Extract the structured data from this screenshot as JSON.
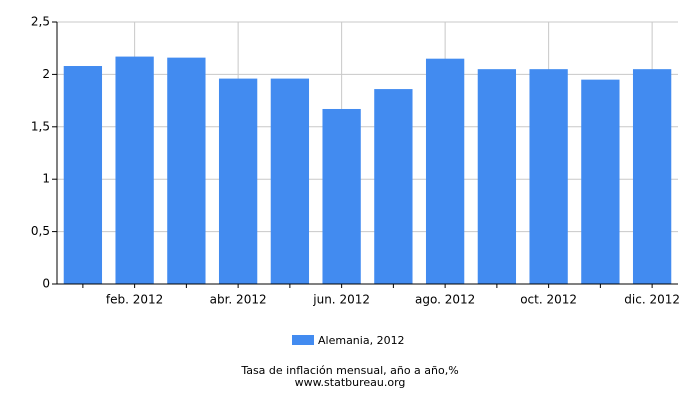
{
  "chart_data": {
    "type": "bar",
    "categories": [
      null,
      "feb. 2012",
      null,
      "abr. 2012",
      null,
      "jun. 2012",
      null,
      "ago. 2012",
      null,
      "oct. 2012",
      null,
      "dic. 2012"
    ],
    "series": [
      {
        "name": "Alemania, 2012",
        "color": "#428bf0",
        "values": [
          2.08,
          2.17,
          2.16,
          1.96,
          1.96,
          1.67,
          1.86,
          2.15,
          2.05,
          2.05,
          1.95,
          2.05
        ]
      }
    ],
    "ylim": [
      0,
      2.5
    ],
    "yticks": [
      0,
      {
        "value": 0.5,
        "label": "0,5"
      },
      1,
      {
        "value": 1.5,
        "label": "1,5"
      },
      2,
      {
        "value": 2.5,
        "label": "2,5"
      }
    ],
    "grid": true,
    "caption": "Tasa de inflación mensual, año a año,%",
    "source": "www.statbureau.org"
  }
}
